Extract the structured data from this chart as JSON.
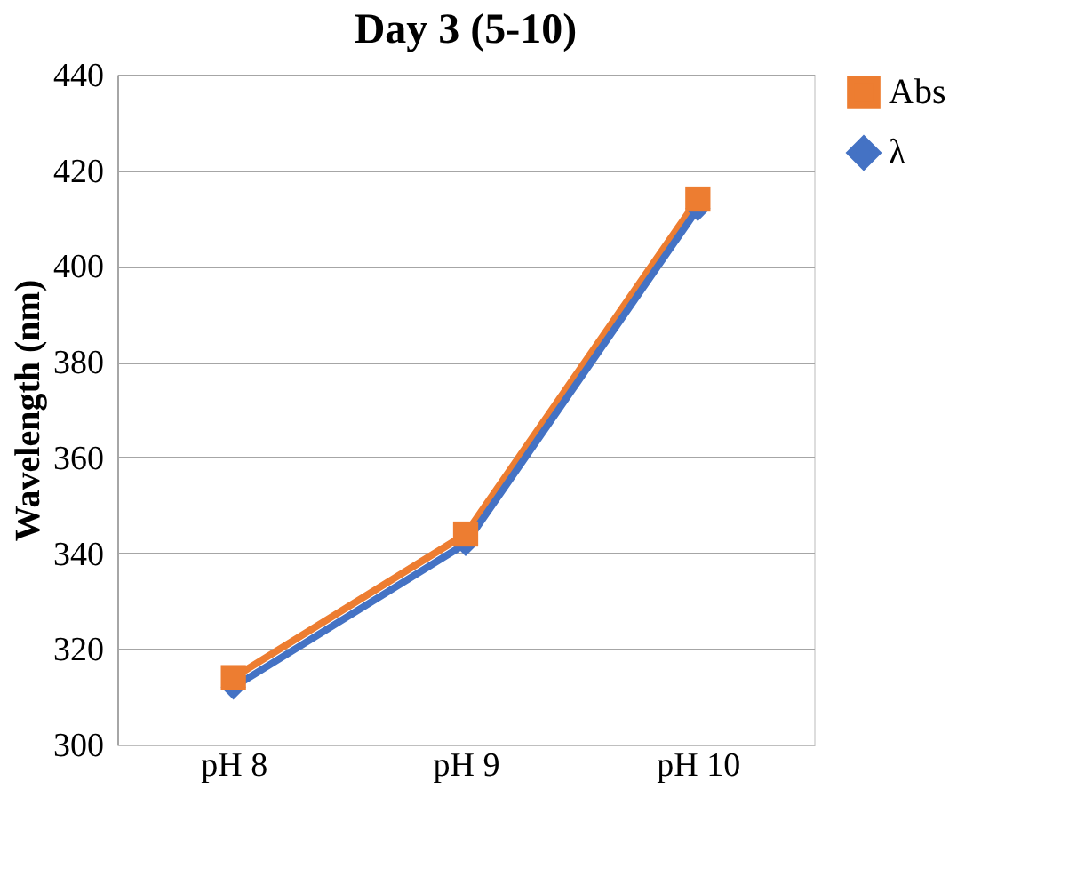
{
  "chart_data": {
    "type": "line",
    "title": "Day 3 (5-10)",
    "ylabel": "Wavelength (nm)",
    "categories": [
      "pH 8",
      "pH 9",
      "pH 10"
    ],
    "series": [
      {
        "name": "Abs",
        "color": "#ed7d31",
        "marker": "square",
        "values": [
          314,
          344,
          414
        ]
      },
      {
        "name": "λ",
        "color": "#4472c4",
        "marker": "diamond",
        "values": [
          312,
          342,
          412
        ]
      }
    ],
    "ylim": [
      300,
      440
    ],
    "yticks": [
      300,
      320,
      340,
      360,
      380,
      400,
      420,
      440
    ],
    "grid": "y",
    "legend": "right",
    "line_style": "solid"
  }
}
